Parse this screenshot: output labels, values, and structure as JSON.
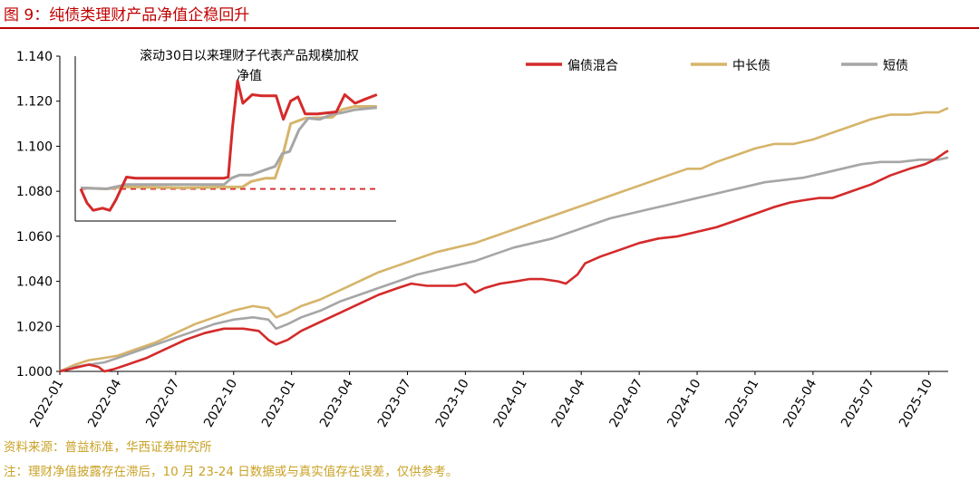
{
  "header": {
    "title": "图 9：纯债类理财产品净值企稳回升"
  },
  "footer": {
    "source": "资料来源：普益标准，华西证券研究所",
    "note": "注：理财净值披露存在滞后，10 月 23-24 日数据或与真实值存在误差，仅供参考。"
  },
  "colors": {
    "brand_red": "#c00000",
    "footer_gold": "#c9a227",
    "series_mixed": "#d42a2a",
    "series_long": "#d6b46a",
    "series_short": "#a6a6a6"
  },
  "chart_data": [
    {
      "type": "line",
      "title": "",
      "xlabel": "",
      "ylabel": "",
      "ylim": [
        1.0,
        1.14
      ],
      "yticks": [
        1.0,
        1.02,
        1.04,
        1.06,
        1.08,
        1.1,
        1.12,
        1.14
      ],
      "ytick_labels": [
        "1.000",
        "1.020",
        "1.040",
        "1.060",
        "1.080",
        "1.100",
        "1.120",
        "1.140"
      ],
      "x_range_months": [
        0,
        46
      ],
      "xticks": [
        0,
        3,
        6,
        9,
        12,
        15,
        18,
        21,
        24,
        27,
        30,
        33,
        36,
        39,
        42,
        45
      ],
      "xtick_labels": [
        "2022-01",
        "2022-04",
        "2022-07",
        "2022-10",
        "2023-01",
        "2023-04",
        "2023-07",
        "2023-10",
        "2024-01",
        "2024-04",
        "2024-07",
        "2024-10",
        "2025-01",
        "2025-04",
        "2025-07",
        "2025-10"
      ],
      "legend": "top-right",
      "series": [
        {
          "name": "偏债混合",
          "color": "#d42a2a",
          "points": [
            [
              0,
              1.0
            ],
            [
              0.5,
              1.001
            ],
            [
              1,
              1.002
            ],
            [
              1.5,
              1.003
            ],
            [
              2,
              1.002
            ],
            [
              2.3,
              1.0
            ],
            [
              2.8,
              1.001
            ],
            [
              3.5,
              1.003
            ],
            [
              4.5,
              1.006
            ],
            [
              5.5,
              1.01
            ],
            [
              6.5,
              1.014
            ],
            [
              7.5,
              1.017
            ],
            [
              8.5,
              1.019
            ],
            [
              9.5,
              1.019
            ],
            [
              10.3,
              1.018
            ],
            [
              10.8,
              1.014
            ],
            [
              11.2,
              1.012
            ],
            [
              11.8,
              1.014
            ],
            [
              12.5,
              1.018
            ],
            [
              13.5,
              1.022
            ],
            [
              14.5,
              1.026
            ],
            [
              15.5,
              1.03
            ],
            [
              16.5,
              1.034
            ],
            [
              17.5,
              1.037
            ],
            [
              18.2,
              1.039
            ],
            [
              19,
              1.038
            ],
            [
              20.5,
              1.038
            ],
            [
              21,
              1.039
            ],
            [
              21.5,
              1.035
            ],
            [
              22,
              1.037
            ],
            [
              22.8,
              1.039
            ],
            [
              23.6,
              1.04
            ],
            [
              24.3,
              1.041
            ],
            [
              25,
              1.041
            ],
            [
              25.8,
              1.04
            ],
            [
              26.2,
              1.039
            ],
            [
              26.8,
              1.043
            ],
            [
              27.2,
              1.048
            ],
            [
              28,
              1.051
            ],
            [
              29,
              1.054
            ],
            [
              30,
              1.057
            ],
            [
              31,
              1.059
            ],
            [
              32,
              1.06
            ],
            [
              33,
              1.062
            ],
            [
              34,
              1.064
            ],
            [
              35,
              1.067
            ],
            [
              36,
              1.07
            ],
            [
              37,
              1.073
            ],
            [
              37.8,
              1.075
            ],
            [
              38.5,
              1.076
            ],
            [
              39.3,
              1.077
            ],
            [
              40,
              1.077
            ],
            [
              41,
              1.08
            ],
            [
              42,
              1.083
            ],
            [
              43,
              1.087
            ],
            [
              44,
              1.09
            ],
            [
              44.8,
              1.092
            ],
            [
              45.3,
              1.094
            ],
            [
              45.8,
              1.097
            ],
            [
              46,
              1.098
            ]
          ]
        },
        {
          "name": "中长债",
          "color": "#d6b46a",
          "points": [
            [
              0,
              1.0
            ],
            [
              0.8,
              1.003
            ],
            [
              1.5,
              1.005
            ],
            [
              2.3,
              1.006
            ],
            [
              3,
              1.007
            ],
            [
              4,
              1.01
            ],
            [
              5,
              1.013
            ],
            [
              6,
              1.017
            ],
            [
              7,
              1.021
            ],
            [
              8,
              1.024
            ],
            [
              9,
              1.027
            ],
            [
              10,
              1.029
            ],
            [
              10.8,
              1.028
            ],
            [
              11.2,
              1.024
            ],
            [
              11.8,
              1.026
            ],
            [
              12.5,
              1.029
            ],
            [
              13.5,
              1.032
            ],
            [
              14.5,
              1.036
            ],
            [
              15.5,
              1.04
            ],
            [
              16.5,
              1.044
            ],
            [
              17.5,
              1.047
            ],
            [
              18.5,
              1.05
            ],
            [
              19.5,
              1.053
            ],
            [
              20.5,
              1.055
            ],
            [
              21.5,
              1.057
            ],
            [
              22.5,
              1.06
            ],
            [
              23.5,
              1.063
            ],
            [
              24.5,
              1.066
            ],
            [
              25.5,
              1.069
            ],
            [
              26.5,
              1.072
            ],
            [
              27.5,
              1.075
            ],
            [
              28.5,
              1.078
            ],
            [
              29.5,
              1.081
            ],
            [
              30.5,
              1.084
            ],
            [
              31.5,
              1.087
            ],
            [
              32.5,
              1.09
            ],
            [
              33.2,
              1.09
            ],
            [
              34,
              1.093
            ],
            [
              35,
              1.096
            ],
            [
              36,
              1.099
            ],
            [
              37,
              1.101
            ],
            [
              38,
              1.101
            ],
            [
              39,
              1.103
            ],
            [
              40,
              1.106
            ],
            [
              41,
              1.109
            ],
            [
              42,
              1.112
            ],
            [
              43,
              1.114
            ],
            [
              44,
              1.114
            ],
            [
              44.8,
              1.115
            ],
            [
              45.5,
              1.115
            ],
            [
              46,
              1.117
            ]
          ]
        },
        {
          "name": "短债",
          "color": "#a6a6a6",
          "points": [
            [
              0,
              1.0
            ],
            [
              0.8,
              1.002
            ],
            [
              1.5,
              1.003
            ],
            [
              2.3,
              1.004
            ],
            [
              3,
              1.006
            ],
            [
              4,
              1.009
            ],
            [
              5,
              1.012
            ],
            [
              6,
              1.015
            ],
            [
              7,
              1.018
            ],
            [
              8,
              1.021
            ],
            [
              9,
              1.023
            ],
            [
              10,
              1.024
            ],
            [
              10.8,
              1.023
            ],
            [
              11.2,
              1.019
            ],
            [
              11.8,
              1.021
            ],
            [
              12.5,
              1.024
            ],
            [
              13.5,
              1.027
            ],
            [
              14.5,
              1.031
            ],
            [
              15.5,
              1.034
            ],
            [
              16.5,
              1.037
            ],
            [
              17.5,
              1.04
            ],
            [
              18.5,
              1.043
            ],
            [
              19.5,
              1.045
            ],
            [
              20.5,
              1.047
            ],
            [
              21.5,
              1.049
            ],
            [
              22.5,
              1.052
            ],
            [
              23.5,
              1.055
            ],
            [
              24.5,
              1.057
            ],
            [
              25.5,
              1.059
            ],
            [
              26.5,
              1.062
            ],
            [
              27.5,
              1.065
            ],
            [
              28.5,
              1.068
            ],
            [
              29.5,
              1.07
            ],
            [
              30.5,
              1.072
            ],
            [
              31.5,
              1.074
            ],
            [
              32.5,
              1.076
            ],
            [
              33.5,
              1.078
            ],
            [
              34.5,
              1.08
            ],
            [
              35.5,
              1.082
            ],
            [
              36.5,
              1.084
            ],
            [
              37.5,
              1.085
            ],
            [
              38.5,
              1.086
            ],
            [
              39.5,
              1.088
            ],
            [
              40.5,
              1.09
            ],
            [
              41.5,
              1.092
            ],
            [
              42.5,
              1.093
            ],
            [
              43.5,
              1.093
            ],
            [
              44.5,
              1.094
            ],
            [
              45.5,
              1.094
            ],
            [
              46,
              1.095
            ]
          ]
        }
      ]
    },
    {
      "type": "line",
      "title": "滚动30日以来理财子代表产品规模加权净值",
      "title_line1": "滚动30日以来理财子代表产品规模加权",
      "title_line2": "净值",
      "xlabel": "",
      "ylabel": "",
      "x_range_days": [
        0,
        30
      ],
      "y_range": [
        1.0888,
        1.1042
      ],
      "baseline": {
        "value": 1.0918,
        "color": "#d42a2a",
        "style": "dashed"
      },
      "series": [
        {
          "name": "偏债混合",
          "color": "#d42a2a",
          "points": [
            [
              0,
              1.0918
            ],
            [
              0.6,
              1.0905
            ],
            [
              1.2,
              1.0898
            ],
            [
              2.1,
              1.09
            ],
            [
              2.8,
              1.0898
            ],
            [
              3.4,
              1.0908
            ],
            [
              4.4,
              1.0929
            ],
            [
              5.3,
              1.0928
            ],
            [
              8.4,
              1.0928
            ],
            [
              13.8,
              1.0928
            ],
            [
              14.2,
              1.0929
            ],
            [
              14.6,
              1.0975
            ],
            [
              15.1,
              1.1019
            ],
            [
              15.6,
              1.0998
            ],
            [
              16.5,
              1.1006
            ],
            [
              17.4,
              1.1005
            ],
            [
              18.8,
              1.1005
            ],
            [
              19.5,
              1.0983
            ],
            [
              20.2,
              1.1
            ],
            [
              20.9,
              1.1004
            ],
            [
              21.6,
              1.0988
            ],
            [
              22.8,
              1.0988
            ],
            [
              24.6,
              1.099
            ],
            [
              25.4,
              1.1006
            ],
            [
              26.4,
              1.0998
            ],
            [
              27.4,
              1.1002
            ],
            [
              28.5,
              1.1006
            ]
          ]
        },
        {
          "name": "中长债",
          "color": "#d6b46a",
          "points": [
            [
              0,
              1.0919
            ],
            [
              2.5,
              1.0918
            ],
            [
              4.3,
              1.092
            ],
            [
              9.8,
              1.0919
            ],
            [
              15.6,
              1.092
            ],
            [
              16.4,
              1.0925
            ],
            [
              17.8,
              1.0928
            ],
            [
              18.7,
              1.0928
            ],
            [
              19.4,
              1.0948
            ],
            [
              20.2,
              1.0979
            ],
            [
              21.6,
              1.0984
            ],
            [
              24.2,
              1.0985
            ],
            [
              25.1,
              1.0992
            ],
            [
              26.4,
              1.0995
            ],
            [
              28.5,
              1.0995
            ]
          ]
        },
        {
          "name": "短债",
          "color": "#a6a6a6",
          "points": [
            [
              0,
              1.0919
            ],
            [
              2.5,
              1.0918
            ],
            [
              4.3,
              1.0922
            ],
            [
              13.8,
              1.0922
            ],
            [
              14.5,
              1.0928
            ],
            [
              15.3,
              1.0931
            ],
            [
              16.4,
              1.0931
            ],
            [
              17.5,
              1.0935
            ],
            [
              18.7,
              1.0939
            ],
            [
              19.4,
              1.0951
            ],
            [
              20.1,
              1.0953
            ],
            [
              21.0,
              1.0973
            ],
            [
              21.9,
              1.0984
            ],
            [
              23.0,
              1.0983
            ],
            [
              24.3,
              1.0988
            ],
            [
              25.1,
              1.0989
            ],
            [
              26.4,
              1.0992
            ],
            [
              28.5,
              1.0994
            ]
          ]
        }
      ]
    }
  ]
}
